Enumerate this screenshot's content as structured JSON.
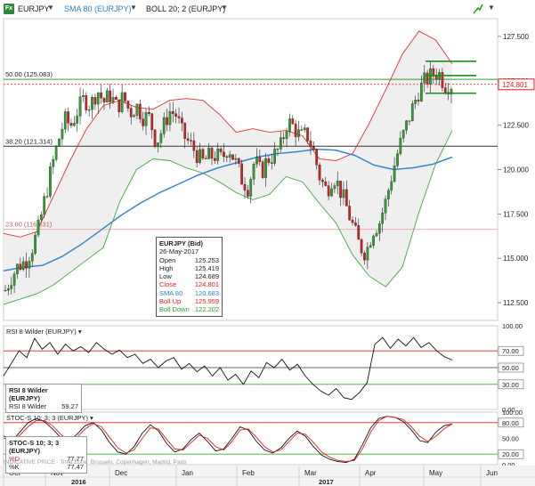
{
  "toolbar": {
    "symbol": "EURJPY",
    "sma_label": "SMA 80 (EURJPY)",
    "boll_label": "BOLL 20; 2 (EURJPY)",
    "badge": "Fx"
  },
  "tooltip": {
    "title": "EURJPY (Bid)",
    "date": "26-May-2017",
    "rows": [
      {
        "label": "Open",
        "value": "125.253",
        "color": "#222222"
      },
      {
        "label": "High",
        "value": "125.419",
        "color": "#222222"
      },
      {
        "label": "Low",
        "value": "124.689",
        "color": "#222222"
      },
      {
        "label": "Close",
        "value": "124.801",
        "color": "#e02020"
      },
      {
        "label": "SMA 80",
        "value": "120.683",
        "color": "#2a7fd4"
      },
      {
        "label": "Boll Up",
        "value": "125.959",
        "color": "#e02020"
      },
      {
        "label": "Boll Down",
        "value": "122.202",
        "color": "#2e9e2e"
      }
    ]
  },
  "rsi_legend": {
    "title": "RSI 8 Wilder (EURJPY)",
    "label": "RSI 8 Wilder",
    "value": "59.27"
  },
  "stoc_legend": {
    "title": "STOC-S 10; 3; 3 (EURJPY)",
    "d_label": "%D",
    "d_value": "77.77",
    "k_label": "%K",
    "k_value": "77.47"
  },
  "footer_note": "INDICATIVE PRICE · Time Zone: Brussels, Copenhagen, Madrid, Paris",
  "colors": {
    "candle_up": "#2e9e2e",
    "candle_down": "#d02020",
    "boll_up": "#e53030",
    "boll_down": "#3ea83e",
    "sma": "#3a86cc",
    "fib": "#333333",
    "rsi": "#111111",
    "stoc_k": "#111111",
    "stoc_d": "#e02020"
  },
  "chart_data": [
    {
      "type": "candlestick",
      "title": "EURJPY",
      "x_labels": [
        "Oct",
        "Nov",
        "Dec",
        "Jan",
        "Feb",
        "Mar",
        "Apr",
        "May",
        "Jun"
      ],
      "year_labels": [
        "2016",
        "2017"
      ],
      "y_ticks": [
        "112.500",
        "115.000",
        "117.500",
        "120.000",
        "122.500",
        "125.000",
        "127.500"
      ],
      "ylim": [
        111.5,
        128.5
      ],
      "current_price": "124.801",
      "fib_levels": [
        {
          "label": "50.00 (125.083)",
          "value": 125.083
        },
        {
          "label": "38.20 (121.314)",
          "value": 121.314
        },
        {
          "label": "23.60 (116.631)",
          "value": 116.631
        }
      ],
      "pattern_lines": [
        126.1,
        125.3,
        124.3
      ],
      "close_path": [
        113.2,
        114,
        114.6,
        114.8,
        115.5,
        116.6,
        118.3,
        120,
        121.5,
        122.8,
        122.5,
        123.3,
        124,
        123.6,
        124.5,
        123.8,
        124.2,
        123.5,
        124.1,
        123.2,
        123.6,
        123,
        122.9,
        121.5,
        122.3,
        123.3,
        123.1,
        122,
        121.5,
        121,
        120.4,
        120.7,
        120.8,
        120.6,
        121.3,
        120.5,
        119.5,
        119,
        120.5,
        119.8,
        120.6,
        120.8,
        121.3,
        122.7,
        122.4,
        121.8,
        122,
        121,
        119.5,
        118.8,
        119.7,
        118.9,
        117.9,
        116.8,
        115.7,
        115.3,
        116.6,
        117,
        118.2,
        119.8,
        121.2,
        122.3,
        123.4,
        124.4,
        125,
        125.3,
        125.5,
        124.8,
        124.8
      ],
      "series": [
        {
          "name": "SMA 80",
          "values": [
            114.3,
            114.5,
            114.6,
            115.1,
            115.8,
            116.6,
            117.4,
            118.1,
            118.7,
            119.2,
            119.7,
            120.1,
            120.4,
            120.7,
            120.9,
            121,
            121.15,
            121.1,
            120.8,
            120.25,
            120,
            120.1,
            120.3,
            120.7
          ]
        },
        {
          "name": "Boll Up",
          "values": [
            116.4,
            116.2,
            116.5,
            118.5,
            120.5,
            122.3,
            123.6,
            123.9,
            123.5,
            123.4,
            123.9,
            124,
            123.9,
            123.1,
            122.1,
            122.3,
            122.1,
            122.2,
            121.9,
            120.6,
            120.5,
            120.9,
            122.6,
            124.5,
            126.5,
            127.8,
            127.3,
            125.96
          ]
        },
        {
          "name": "Boll Down",
          "values": [
            112.4,
            112.7,
            113,
            113.5,
            114.2,
            114.9,
            115.6,
            118.2,
            120,
            120.6,
            120.5,
            120.1,
            119.8,
            119.3,
            118.7,
            118.3,
            118.6,
            119.6,
            119.3,
            118.1,
            117,
            115.2,
            114,
            113.4,
            114.5,
            117.6,
            120.3,
            122.2
          ]
        }
      ]
    },
    {
      "type": "line",
      "title": "RSI 8 Wilder (EURJPY)",
      "ylim": [
        0,
        100
      ],
      "y_ticks": [
        "100.00",
        "70.00",
        "50.00",
        "30.00",
        "0.00"
      ],
      "levels": [
        70,
        50,
        30
      ],
      "series": [
        {
          "name": "RSI 8 Wilder",
          "values": [
            40,
            55,
            70,
            62,
            85,
            72,
            80,
            66,
            78,
            70,
            75,
            68,
            80,
            72,
            66,
            71,
            62,
            66,
            55,
            60,
            50,
            58,
            62,
            48,
            55,
            45,
            52,
            40,
            50,
            35,
            42,
            30,
            46,
            38,
            56,
            50,
            60,
            47,
            54,
            40,
            30,
            22,
            17,
            25,
            14,
            12,
            20,
            32,
            78,
            86,
            73,
            84,
            76,
            86,
            74,
            80,
            70,
            63,
            59
          ]
        }
      ]
    },
    {
      "type": "line",
      "title": "STOC-S 10; 3; 3 (EURJPY)",
      "ylim": [
        0,
        100
      ],
      "y_ticks": [
        "100.00",
        "80.00",
        "50.00",
        "20.00",
        "0.00"
      ],
      "levels": [
        80,
        20
      ],
      "series": [
        {
          "name": "%K",
          "values": [
            55,
            45,
            62,
            80,
            88,
            82,
            68,
            52,
            44,
            58,
            74,
            80,
            66,
            42,
            24,
            20,
            34,
            60,
            76,
            64,
            40,
            24,
            30,
            48,
            60,
            44,
            26,
            30,
            50,
            72,
            66,
            44,
            28,
            22,
            32,
            50,
            64,
            54,
            34,
            18,
            10,
            6,
            4,
            10,
            38,
            70,
            88,
            92,
            90,
            82,
            66,
            46,
            42,
            62,
            74,
            77.5
          ]
        },
        {
          "name": "%D",
          "values": [
            50,
            48,
            56,
            72,
            84,
            84,
            74,
            58,
            46,
            52,
            68,
            78,
            72,
            52,
            32,
            22,
            28,
            50,
            70,
            68,
            48,
            30,
            28,
            42,
            56,
            50,
            34,
            28,
            44,
            66,
            68,
            52,
            34,
            24,
            28,
            44,
            60,
            58,
            42,
            24,
            14,
            8,
            6,
            8,
            30,
            62,
            84,
            92,
            90,
            86,
            72,
            54,
            44,
            54,
            68,
            77.8
          ]
        }
      ]
    }
  ]
}
